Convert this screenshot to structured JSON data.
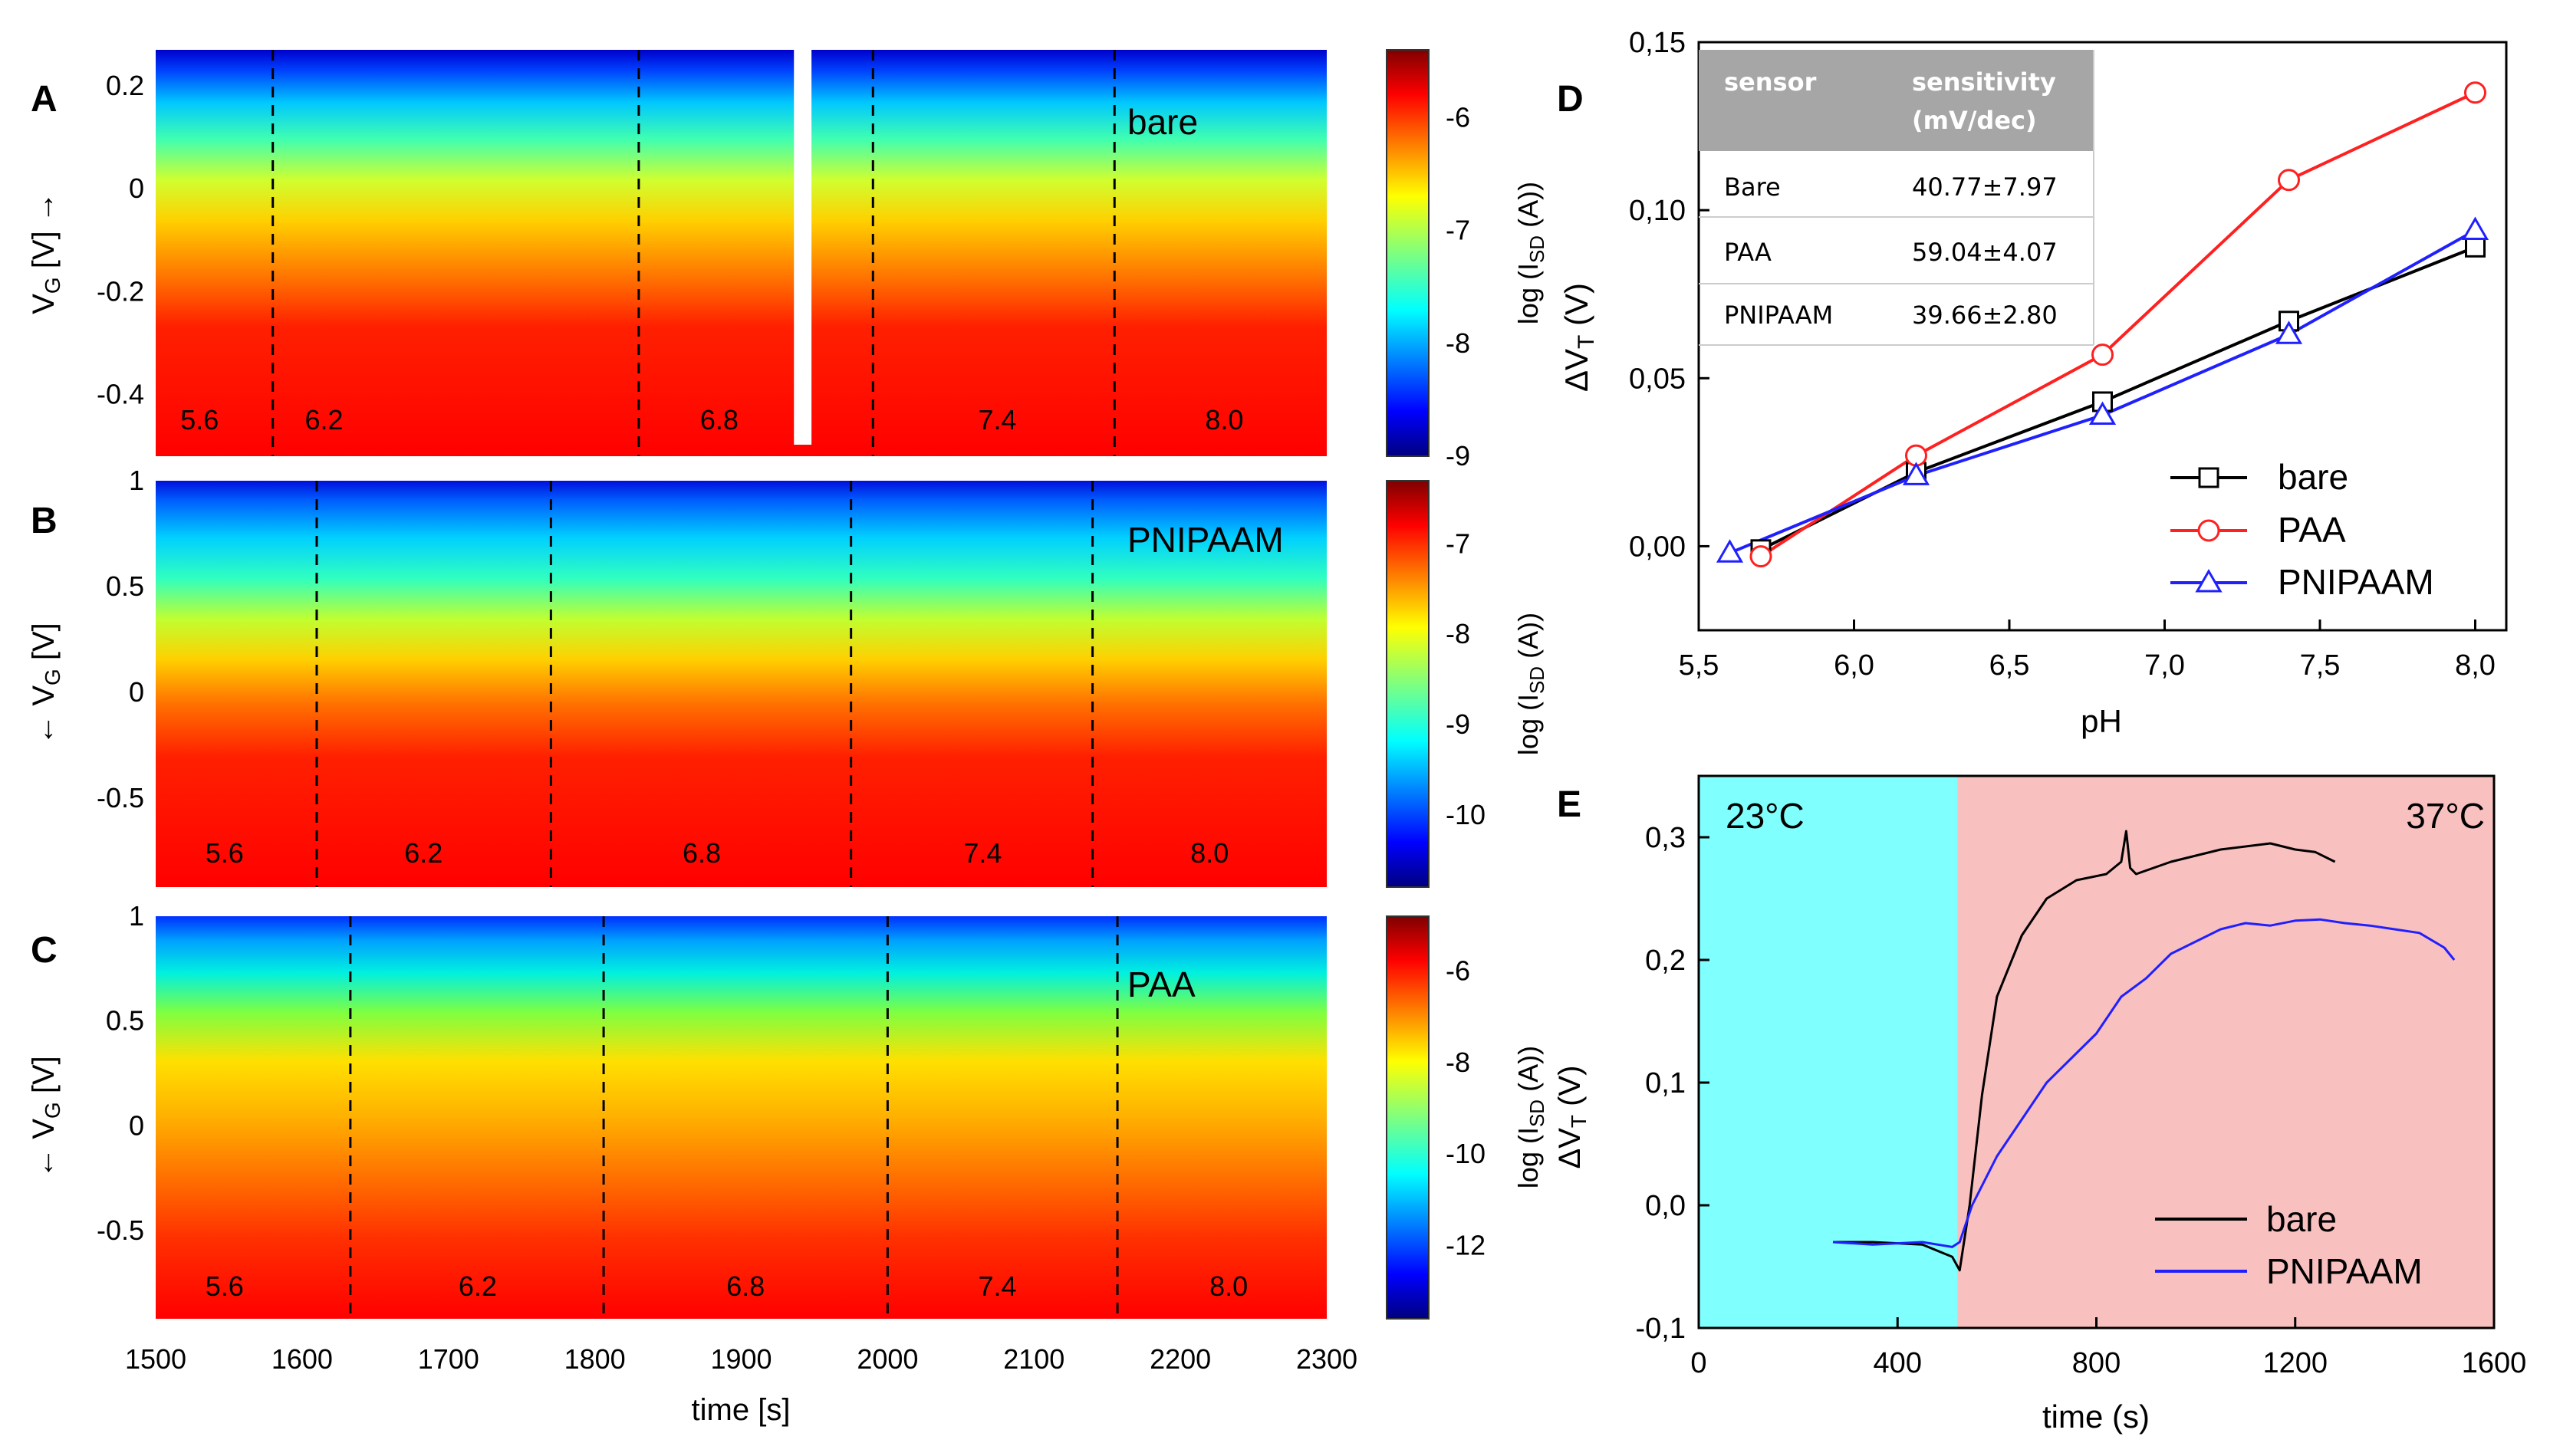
{
  "colors": {
    "bare": "#000000",
    "PAA": "#ff2020",
    "PNIPAAM": "#2020ff",
    "cold_bg": "#80ffff",
    "warm_bg": "#f9c0c0",
    "table_header_bg": "#a6a6a6"
  },
  "chart_data": [
    {
      "panel": "A",
      "type": "heatmap",
      "label_text": "bare",
      "xlabel": "",
      "ylabel": "V_G [V] →",
      "ylabel_main": "V",
      "ylabel_sub": "G",
      "ylabel_tail": " [V] →",
      "xlim": [
        1500,
        2300
      ],
      "ylim": [
        -0.52,
        0.27
      ],
      "yticks": [
        0.2,
        0,
        -0.2,
        -0.4
      ],
      "ytick_labels": [
        "0.2",
        "0",
        "-0.2",
        "-0.4"
      ],
      "dashed_lines_x": [
        1580,
        1830,
        1990,
        2155
      ],
      "segments": [
        {
          "x": 1530,
          "label": "5.6"
        },
        {
          "x": 1615,
          "label": "6.2"
        },
        {
          "x": 1885,
          "label": "6.8"
        },
        {
          "x": 2075,
          "label": "7.4"
        },
        {
          "x": 2230,
          "label": "8.0"
        }
      ],
      "gap_x": [
        1936,
        1948
      ],
      "colorbar": {
        "label": "log (I_SD (A))",
        "label_main": "log (I",
        "label_sub": "SD",
        "label_tail": " (A))",
        "min": -9,
        "max": -5.4,
        "ticks": [
          -6,
          -7,
          -8,
          -9
        ],
        "tick_labels": [
          "-6",
          "-7",
          "-8",
          "-9"
        ]
      }
    },
    {
      "panel": "B",
      "type": "heatmap",
      "label_text": "PNIPAAM",
      "xlabel": "",
      "ylabel": "← V_G [V]",
      "ylabel_main": "← V",
      "ylabel_sub": "G",
      "ylabel_tail": " [V]",
      "xlim": [
        1500,
        2300
      ],
      "ylim": [
        -0.92,
        1.0
      ],
      "yticks": [
        1,
        0.5,
        0,
        -0.5
      ],
      "ytick_labels": [
        "1",
        "0.5",
        "0",
        "-0.5"
      ],
      "dashed_lines_x": [
        1610,
        1770,
        1975,
        2140
      ],
      "segments": [
        {
          "x": 1547,
          "label": "5.6"
        },
        {
          "x": 1683,
          "label": "6.2"
        },
        {
          "x": 1873,
          "label": "6.8"
        },
        {
          "x": 2065,
          "label": "7.4"
        },
        {
          "x": 2220,
          "label": "8.0"
        }
      ],
      "colorbar": {
        "label": "log (I_SD (A))",
        "label_main": "log (I",
        "label_sub": "SD",
        "label_tail": " (A))",
        "min": -10.8,
        "max": -6.3,
        "ticks": [
          -7,
          -8,
          -9,
          -10
        ],
        "tick_labels": [
          "-7",
          "-8",
          "-9",
          "-10"
        ]
      }
    },
    {
      "panel": "C",
      "type": "heatmap",
      "label_text": "PAA",
      "xlabel": "time [s]",
      "ylabel": "← V_G [V]",
      "ylabel_main": "← V",
      "ylabel_sub": "G",
      "ylabel_tail": " [V]",
      "xlim": [
        1500,
        2300
      ],
      "ylim": [
        -0.92,
        1.0
      ],
      "yticks": [
        1,
        0.5,
        0,
        -0.5
      ],
      "ytick_labels": [
        "1",
        "0.5",
        "0",
        "-0.5"
      ],
      "xticks": [
        1500,
        1600,
        1700,
        1800,
        1900,
        2000,
        2100,
        2200,
        2300
      ],
      "xtick_labels": [
        "1500",
        "1600",
        "1700",
        "1800",
        "1900",
        "2000",
        "2100",
        "2200",
        "2300"
      ],
      "dashed_lines_x": [
        1633,
        1806,
        2000,
        2157
      ],
      "segments": [
        {
          "x": 1547,
          "label": "5.6"
        },
        {
          "x": 1720,
          "label": "6.2"
        },
        {
          "x": 1903,
          "label": "6.8"
        },
        {
          "x": 2075,
          "label": "7.4"
        },
        {
          "x": 2233,
          "label": "8.0"
        }
      ],
      "colorbar": {
        "label": "log (I_SD (A))",
        "label_main": "log (I",
        "label_sub": "SD",
        "label_tail": " (A))",
        "min": -13.6,
        "max": -4.8,
        "ticks": [
          -6,
          -8,
          -10,
          -12
        ],
        "tick_labels": [
          "-6",
          "-8",
          "-10",
          "-12"
        ]
      }
    },
    {
      "panel": "D",
      "type": "line",
      "xlabel": "pH",
      "ylabel": "ΔV_T (V)",
      "ylabel_main": "ΔV",
      "ylabel_sub": "T",
      "ylabel_tail": " (V)",
      "xlim": [
        5.5,
        8.1
      ],
      "ylim": [
        -0.025,
        0.15
      ],
      "xticks": [
        5.5,
        6.0,
        6.5,
        7.0,
        7.5,
        8.0
      ],
      "xtick_labels": [
        "5,5",
        "6,0",
        "6,5",
        "7,0",
        "7,5",
        "8,0"
      ],
      "yticks": [
        0.0,
        0.05,
        0.1,
        0.15
      ],
      "ytick_labels": [
        "0,00",
        "0,05",
        "0,10",
        "0,15"
      ],
      "series": [
        {
          "name": "bare",
          "marker": "square",
          "x": [
            5.7,
            6.2,
            6.8,
            7.4,
            8.0
          ],
          "y": [
            -0.001,
            0.022,
            0.043,
            0.067,
            0.089
          ]
        },
        {
          "name": "PAA",
          "marker": "circle",
          "x": [
            5.7,
            6.2,
            6.8,
            7.4,
            8.0
          ],
          "y": [
            -0.003,
            0.027,
            0.057,
            0.109,
            0.135
          ]
        },
        {
          "name": "PNIPAAM",
          "marker": "triangle",
          "x": [
            5.6,
            6.2,
            6.8,
            7.4,
            8.0
          ],
          "y": [
            -0.002,
            0.021,
            0.039,
            0.063,
            0.094
          ]
        }
      ],
      "legend": [
        "bare",
        "PAA",
        "PNIPAAM"
      ],
      "legend_position": "bottom-right",
      "table": {
        "headers": [
          "sensor",
          "sensitivity (mV/dec)"
        ],
        "header_line1": [
          "sensor",
          "sensitivity"
        ],
        "header_line2": [
          "",
          "(mV/dec)"
        ],
        "rows": [
          [
            "Bare",
            "40.77±7.97"
          ],
          [
            "PAA",
            "59.04±4.07"
          ],
          [
            "PNIPAAM",
            "39.66±2.80"
          ]
        ]
      }
    },
    {
      "panel": "E",
      "type": "line",
      "xlabel": "time (s)",
      "ylabel": "ΔV_T (V)",
      "ylabel_main": "ΔV",
      "ylabel_sub": "T",
      "ylabel_tail": " (V)",
      "xlim": [
        0,
        1600
      ],
      "ylim": [
        -0.1,
        0.35
      ],
      "xticks": [
        0,
        400,
        800,
        1200,
        1600
      ],
      "xtick_labels": [
        "0",
        "400",
        "800",
        "1200",
        "1600"
      ],
      "yticks": [
        -0.1,
        0.0,
        0.1,
        0.2,
        0.3
      ],
      "ytick_labels": [
        "-0,1",
        "0,0",
        "0,1",
        "0,2",
        "0,3"
      ],
      "regions": [
        {
          "label": "23°C",
          "x": [
            0,
            520
          ]
        },
        {
          "label": "37°C",
          "x": [
            520,
            1600
          ]
        }
      ],
      "series": [
        {
          "name": "bare",
          "x": [
            270,
            350,
            450,
            510,
            525,
            545,
            570,
            600,
            650,
            700,
            760,
            820,
            850,
            860,
            868,
            880,
            950,
            1050,
            1150,
            1200,
            1240,
            1280
          ],
          "y": [
            -0.03,
            -0.03,
            -0.032,
            -0.042,
            -0.053,
            0.0,
            0.09,
            0.17,
            0.22,
            0.25,
            0.265,
            0.27,
            0.28,
            0.305,
            0.275,
            0.27,
            0.28,
            0.29,
            0.295,
            0.29,
            0.288,
            0.28
          ]
        },
        {
          "name": "PNIPAAM",
          "x": [
            270,
            350,
            450,
            510,
            525,
            550,
            600,
            650,
            700,
            750,
            800,
            850,
            900,
            950,
            1000,
            1050,
            1100,
            1150,
            1200,
            1250,
            1300,
            1350,
            1400,
            1450,
            1500,
            1520
          ],
          "y": [
            -0.03,
            -0.032,
            -0.03,
            -0.034,
            -0.03,
            0.0,
            0.04,
            0.07,
            0.1,
            0.12,
            0.14,
            0.17,
            0.185,
            0.205,
            0.215,
            0.225,
            0.23,
            0.228,
            0.232,
            0.233,
            0.23,
            0.228,
            0.225,
            0.222,
            0.21,
            0.2
          ]
        }
      ],
      "legend": [
        "bare",
        "PNIPAAM"
      ],
      "legend_position": "bottom-right"
    }
  ]
}
